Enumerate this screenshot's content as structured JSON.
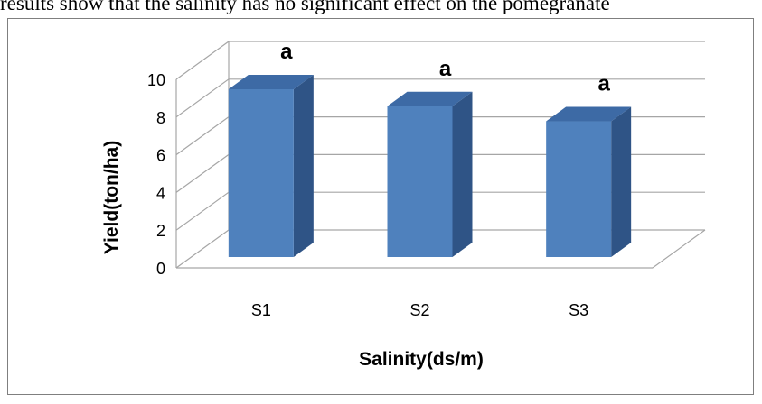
{
  "caption": "results show that the salinity has no significant effect on the pomegranate",
  "chart_data": {
    "type": "bar",
    "categories": [
      "S1",
      "S2",
      "S3"
    ],
    "values": [
      8.9,
      8.0,
      7.2
    ],
    "annotations": [
      "a",
      "a",
      "a"
    ],
    "title": "",
    "xlabel": "Salinity(ds/m)",
    "ylabel": "Yield(ton/ha)",
    "ylim": [
      0,
      10
    ],
    "yticks": [
      0,
      2,
      4,
      6,
      8,
      10
    ],
    "grid": true,
    "legend": "none",
    "colors": {
      "bar_front": "#4f81bd",
      "bar_side": "#2f5486",
      "bar_top": "#3d6aa5",
      "grid": "#a6a6a6"
    }
  }
}
